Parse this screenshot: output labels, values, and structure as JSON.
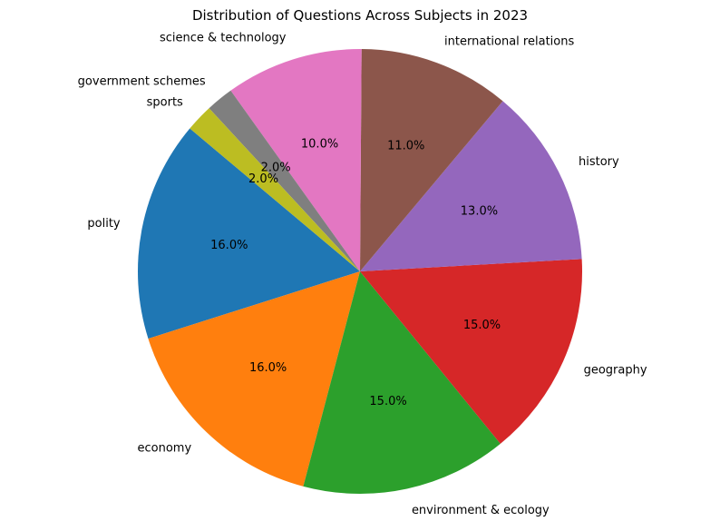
{
  "chart_data": {
    "type": "pie",
    "title": "Distribution of Questions Across Subjects in 2023",
    "start_angle_deg": 140,
    "direction": "counterclockwise",
    "slices": [
      {
        "label": "polity",
        "value": 16,
        "pct_label": "16.0%",
        "color": "#1f77b4"
      },
      {
        "label": "economy",
        "value": 16,
        "pct_label": "16.0%",
        "color": "#ff7f0e"
      },
      {
        "label": "environment & ecology",
        "value": 15,
        "pct_label": "15.0%",
        "color": "#2ca02c"
      },
      {
        "label": "geography",
        "value": 15,
        "pct_label": "15.0%",
        "color": "#d62728"
      },
      {
        "label": "history",
        "value": 13,
        "pct_label": "13.0%",
        "color": "#9467bd"
      },
      {
        "label": "international relations",
        "value": 11,
        "pct_label": "11.0%",
        "color": "#8c564b"
      },
      {
        "label": "science & technology",
        "value": 10,
        "pct_label": "10.0%",
        "color": "#e377c2"
      },
      {
        "label": "government schemes",
        "value": 2,
        "pct_label": "2.0%",
        "color": "#7f7f7f"
      },
      {
        "label": "sports",
        "value": 2,
        "pct_label": "2.0%",
        "color": "#bcbd22"
      }
    ]
  }
}
